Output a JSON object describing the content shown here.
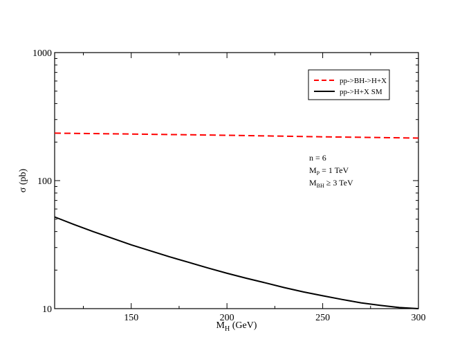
{
  "chart_data": {
    "type": "line",
    "xlabel": "M",
    "xlabel_sub": "H",
    "xlabel_unit": " (GeV)",
    "ylabel": "σ (pb)",
    "xlim": [
      110,
      300
    ],
    "ylim": [
      10,
      1000
    ],
    "yscale": "log",
    "x_ticks": [
      150,
      200,
      250,
      300
    ],
    "y_ticks": [
      {
        "value": 10,
        "label": "10"
      },
      {
        "value": 100,
        "label": "100"
      },
      {
        "value": 1000,
        "label": "1000"
      }
    ],
    "grid": false,
    "legend_position": "top-right",
    "series": [
      {
        "name": "pp->BH->H+X",
        "color": "#ff0000",
        "dash": "dashed",
        "x": [
          110,
          150,
          200,
          250,
          300
        ],
        "y": [
          235,
          231,
          226,
          220,
          215
        ]
      },
      {
        "name": "pp->H+X  SM",
        "color": "#000000",
        "dash": "solid",
        "x": [
          110,
          120,
          130,
          140,
          150,
          160,
          170,
          180,
          190,
          200,
          210,
          220,
          230,
          240,
          250,
          260,
          270,
          280,
          290,
          300
        ],
        "y": [
          52,
          45.5,
          40,
          35.5,
          31.5,
          28.3,
          25.4,
          23,
          20.8,
          18.9,
          17.3,
          15.9,
          14.6,
          13.5,
          12.6,
          11.8,
          11.1,
          10.6,
          10.2,
          10.0
        ]
      }
    ],
    "annotation_lines": [
      {
        "main": "n = 6"
      },
      {
        "main": "M",
        "sub": "P",
        "rest": " = 1 TeV"
      },
      {
        "main": "M",
        "sub": "BH",
        "rest": " ≥ 3 TeV"
      }
    ]
  }
}
